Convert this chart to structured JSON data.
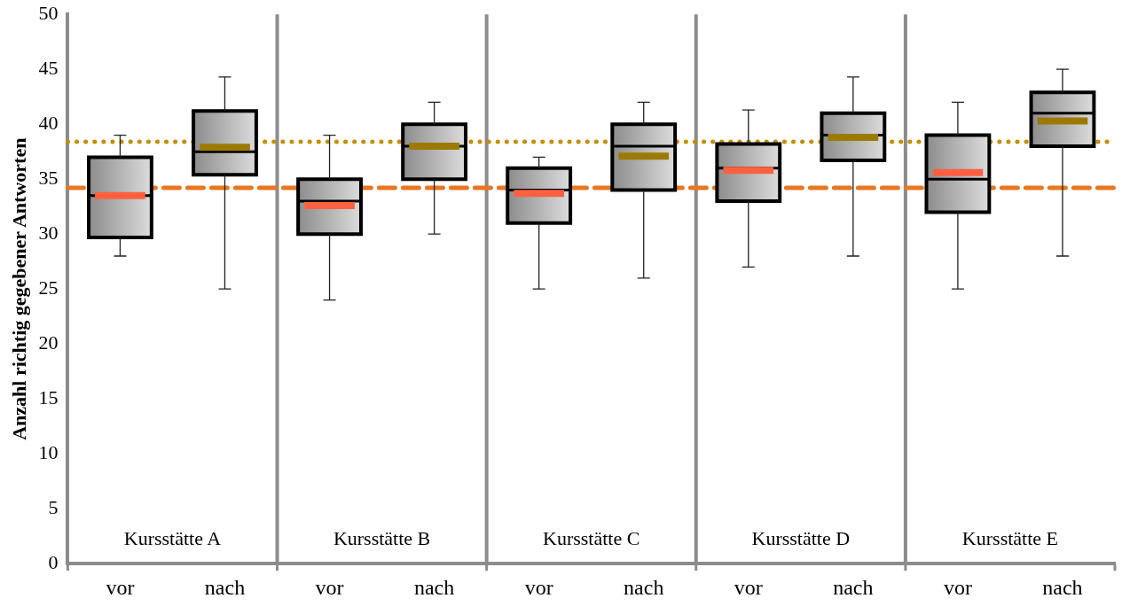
{
  "chart_data": {
    "type": "box",
    "ylabel": "Anzahl richtig gegebener Antworten",
    "categories": [
      "vor",
      "nach",
      "vor",
      "nach",
      "vor",
      "nach",
      "vor",
      "nach",
      "vor",
      "nach"
    ],
    "annotations": [
      "Kursstätte A",
      "Kursstätte B",
      "Kursstätte C",
      "Kursstätte D",
      "Kursstätte E"
    ],
    "series": [
      {
        "color": "#ff6040",
        "boxes": [
          {
            "low": 28,
            "q1": 29.7,
            "median": 33.5,
            "q3": 37,
            "high": 39,
            "mean": 33.5
          },
          null,
          {
            "low": 24,
            "q1": 30,
            "median": 33,
            "q3": 35,
            "high": 39,
            "mean": 32.6
          },
          null,
          {
            "low": 25,
            "q1": 31,
            "median": 34,
            "q3": 36,
            "high": 37,
            "mean": 33.7
          },
          null,
          {
            "low": 27,
            "q1": 33,
            "median": 36,
            "q3": 38.2,
            "high": 41.3,
            "mean": 35.8
          },
          null,
          {
            "low": 25,
            "q1": 32,
            "median": 35,
            "q3": 39,
            "high": 42,
            "mean": 35.6
          },
          null
        ]
      },
      {
        "color": "#9c7a00",
        "boxes": [
          null,
          {
            "low": 25,
            "q1": 35.4,
            "median": 37.5,
            "q3": 41.2,
            "high": 44.3,
            "mean": 37.9
          },
          null,
          {
            "low": 30,
            "q1": 35,
            "median": 38,
            "q3": 40,
            "high": 42,
            "mean": 38
          },
          null,
          {
            "low": 26,
            "q1": 34,
            "median": 38,
            "q3": 40,
            "high": 42,
            "mean": 37.1
          },
          null,
          {
            "low": 28,
            "q1": 36.7,
            "median": 39,
            "q3": 41,
            "high": 44.3,
            "mean": 38.8
          },
          null,
          {
            "low": 28,
            "q1": 38,
            "median": 41,
            "q3": 42.9,
            "high": 45,
            "mean": 40.3
          }
        ]
      }
    ],
    "ylim": [
      0,
      50
    ],
    "yticks": [
      0,
      5,
      10,
      15,
      20,
      25,
      30,
      35,
      40,
      45,
      50
    ],
    "grid": false,
    "legend": false,
    "ref_lines": [
      {
        "axis": "y",
        "value": 38.4,
        "color": "#c09000",
        "line_style": "dotted"
      },
      {
        "axis": "y",
        "value": 34.2,
        "color": "#e87722",
        "line_style": "dashed"
      }
    ]
  }
}
